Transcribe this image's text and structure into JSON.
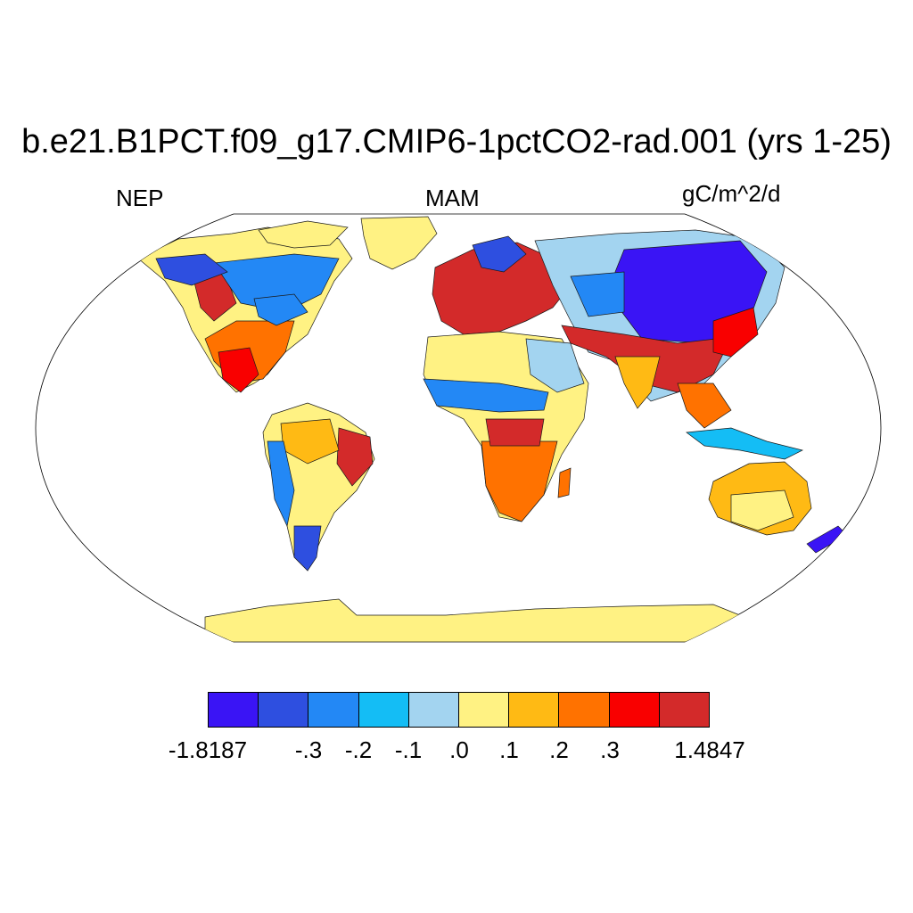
{
  "title": "b.e21.B1PCT.f09_g17.CMIP6-1pctCO2-rad.001 (yrs 1-25)",
  "left_label": "NEP",
  "center_label": "MAM",
  "right_label": "gC/m^2/d",
  "colorbar": {
    "colors": [
      "#3a14f5",
      "#2e4fe0",
      "#2388f5",
      "#14bdf5",
      "#a3d4f0",
      "#fff283",
      "#ffba14",
      "#ff7200",
      "#f90000",
      "#d32a2a"
    ],
    "labels": [
      "-1.8187",
      "-.3",
      "-.2",
      "-.1",
      ".0",
      ".1",
      ".2",
      ".3",
      "1.4847"
    ]
  }
}
